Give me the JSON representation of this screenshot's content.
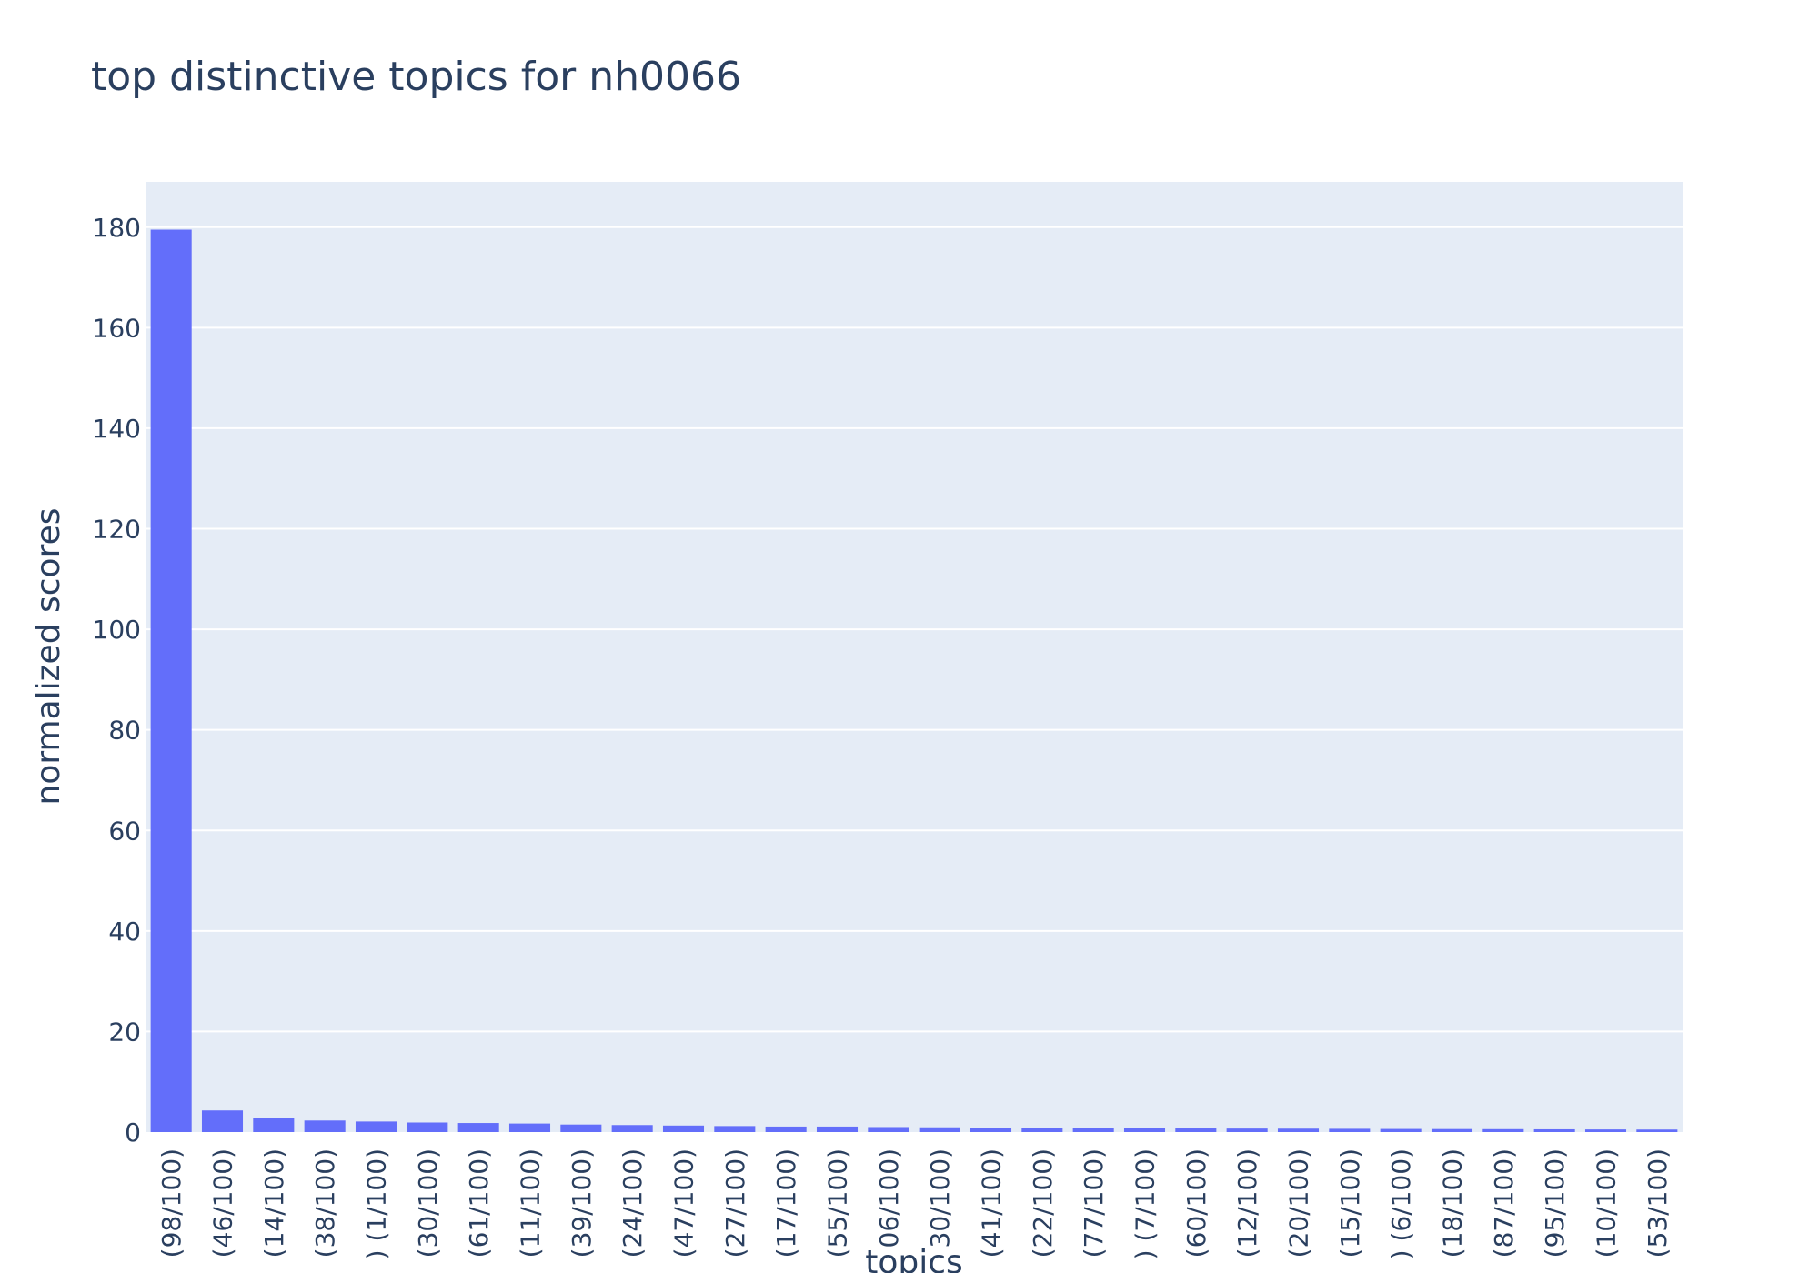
{
  "chart_data": {
    "type": "bar",
    "title": "top distinctive topics for nh0066",
    "xlabel": "topics",
    "ylabel": "normalized scores",
    "ylim": [
      0,
      189
    ],
    "yticks": [
      0,
      20,
      40,
      60,
      80,
      100,
      120,
      140,
      160,
      180
    ],
    "grid": true,
    "legend": "none",
    "bar_color": "#636efa",
    "plot_bg": "#e5ecf6",
    "categories": [
      "(98/100)",
      "(46/100)",
      "(14/100)",
      "(38/100)",
      ") (1/100)",
      "(30/100)",
      "(61/100)",
      "(11/100)",
      "(39/100)",
      "(24/100)",
      "(47/100)",
      "(27/100)",
      "(17/100)",
      "(55/100)",
      "06/100)",
      "30/100)",
      "(41/100)",
      "(22/100)",
      "(77/100)",
      ") (7/100)",
      "(60/100)",
      "(12/100)",
      "(20/100)",
      "(15/100)",
      ") (6/100)",
      "(18/100)",
      "(87/100)",
      "(95/100)",
      "(10/100)",
      "(53/100)"
    ],
    "values": [
      179.5,
      4.3,
      2.8,
      2.3,
      2.1,
      1.9,
      1.8,
      1.7,
      1.5,
      1.4,
      1.3,
      1.2,
      1.1,
      1.1,
      1.0,
      0.95,
      0.9,
      0.85,
      0.8,
      0.75,
      0.72,
      0.7,
      0.68,
      0.65,
      0.62,
      0.6,
      0.58,
      0.55,
      0.52,
      0.5
    ]
  }
}
